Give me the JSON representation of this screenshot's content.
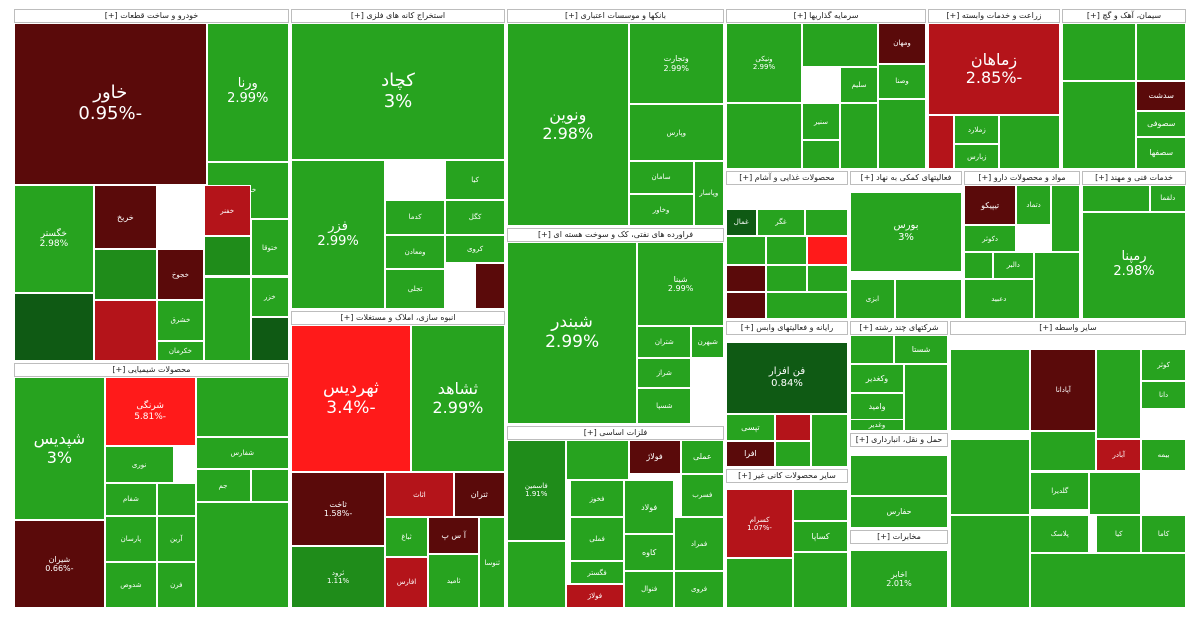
{
  "colors": {
    "up_strong": "#27a31f",
    "up_mid": "#1f8c1a",
    "up_dark": "#0f5a14",
    "down_dark": "#5a0a0a",
    "down_mid": "#b4141a",
    "down_bright": "#ff1a1a",
    "header_bg": "#ffffff"
  },
  "sectors": [
    {
      "id": "auto",
      "title": "خودرو و ساخت قطعات [+]",
      "tiles": [
        {
          "name": "خاور",
          "pct": "-0.95%"
        },
        {
          "name": "ورنا",
          "pct": "2.99%"
        },
        {
          "name": "خگستر",
          "pct": "2.98%"
        },
        {
          "name": "خریخ",
          "pct": ""
        },
        {
          "name": "خساپا",
          "pct": ""
        },
        {
          "name": "خجوخ",
          "pct": ""
        },
        {
          "name": "خفنر",
          "pct": ""
        },
        {
          "name": "ختوقا",
          "pct": ""
        },
        {
          "name": "خشرق",
          "pct": ""
        },
        {
          "name": "خکرمان",
          "pct": ""
        },
        {
          "name": "خزر",
          "pct": ""
        }
      ]
    },
    {
      "id": "metal_ore",
      "title": "استخراج کانه های فلزی [+]",
      "tiles": [
        {
          "name": "کچاد",
          "pct": "3%"
        },
        {
          "name": "فزر",
          "pct": "2.99%"
        },
        {
          "name": "کدما",
          "pct": ""
        },
        {
          "name": "کروی",
          "pct": ""
        },
        {
          "name": "کگل",
          "pct": ""
        },
        {
          "name": "ومعادن",
          "pct": ""
        },
        {
          "name": "تجلی",
          "pct": ""
        },
        {
          "name": "کیا",
          "pct": ""
        }
      ]
    },
    {
      "id": "banks",
      "title": "بانکها و موسسات اعتباری [+]",
      "tiles": [
        {
          "name": "ونوین",
          "pct": "2.98%"
        },
        {
          "name": "وتجارت",
          "pct": "2.99%"
        },
        {
          "name": "وپارس",
          "pct": ""
        },
        {
          "name": "سامان",
          "pct": ""
        },
        {
          "name": "وخاور",
          "pct": ""
        },
        {
          "name": "وپاسار",
          "pct": ""
        }
      ]
    },
    {
      "id": "investment",
      "title": "سرمایه گذاریها [+]",
      "tiles": [
        {
          "name": "ونیکی",
          "pct": "2.99%"
        },
        {
          "name": "ومهان",
          "pct": ""
        },
        {
          "name": "وصنا",
          "pct": ""
        },
        {
          "name": "سنیر",
          "pct": ""
        },
        {
          "name": "سلیم",
          "pct": ""
        }
      ]
    },
    {
      "id": "agri",
      "title": "زراعت و خدمات وابسته [+]",
      "tiles": [
        {
          "name": "زماهان",
          "pct": "-2.85%"
        },
        {
          "name": "زملارد",
          "pct": ""
        },
        {
          "name": "زبارس",
          "pct": ""
        }
      ]
    },
    {
      "id": "cement",
      "title": "سیمان، آهک و گچ [+]",
      "tiles": [
        {
          "name": "سدشت",
          "pct": ""
        },
        {
          "name": "سصوفی",
          "pct": ""
        },
        {
          "name": "سصفها",
          "pct": ""
        }
      ]
    },
    {
      "id": "refinery",
      "title": "فراورده های نفتی، کک و سوخت هسته ای [+]",
      "tiles": [
        {
          "name": "شبندر",
          "pct": "2.99%"
        },
        {
          "name": "شینا",
          "pct": "2.99%"
        },
        {
          "name": "شتران",
          "pct": ""
        },
        {
          "name": "شبهرن",
          "pct": ""
        },
        {
          "name": "شراز",
          "pct": ""
        },
        {
          "name": "شسپا",
          "pct": ""
        }
      ]
    },
    {
      "id": "food",
      "title": "محصولات غذایی و آشام [+]",
      "tiles": [
        {
          "name": "غگر",
          "pct": ""
        },
        {
          "name": "غمال",
          "pct": ""
        }
      ]
    },
    {
      "id": "it",
      "title": "رایانه و فعالیتهای وابس [+]",
      "tiles": [
        {
          "name": "فن افزار",
          "pct": "0.84%"
        },
        {
          "name": "تپسی",
          "pct": ""
        },
        {
          "name": "افرا",
          "pct": ""
        }
      ]
    },
    {
      "id": "nonmetal",
      "title": "سایر محصولات کانی غیر [+]",
      "tiles": [
        {
          "name": "کسرام",
          "pct": "-1.07%"
        },
        {
          "name": "کساپا",
          "pct": ""
        }
      ]
    },
    {
      "id": "financial_aux",
      "title": "فعالیتهای کمکی به نهاد [+]",
      "tiles": [
        {
          "name": "بورس",
          "pct": "3%"
        },
        {
          "name": "ابزی",
          "pct": ""
        }
      ]
    },
    {
      "id": "pharma",
      "title": "مواد و محصولات دارو [+]",
      "tiles": [
        {
          "name": "تیپیکو",
          "pct": ""
        },
        {
          "name": "دتماد",
          "pct": ""
        },
        {
          "name": "دکوثر",
          "pct": ""
        },
        {
          "name": "دالبر",
          "pct": ""
        },
        {
          "name": "دعبید",
          "pct": ""
        }
      ]
    },
    {
      "id": "engineering",
      "title": "خدمات فنی و مهند [+]",
      "tiles": [
        {
          "name": "رمپنا",
          "pct": "2.98%"
        },
        {
          "name": "دلقما",
          "pct": ""
        }
      ]
    },
    {
      "id": "multi",
      "title": "شرکتهای چند رشته [+]",
      "tiles": [
        {
          "name": "شستا",
          "pct": ""
        },
        {
          "name": "وکغدیر",
          "pct": ""
        },
        {
          "name": "وامید",
          "pct": ""
        },
        {
          "name": "وغدیر",
          "pct": ""
        }
      ]
    },
    {
      "id": "chemical",
      "title": "محصولات شیمیایی [+]",
      "tiles": [
        {
          "name": "شپدیس",
          "pct": "3%"
        },
        {
          "name": "شرنگی",
          "pct": "-5.81%"
        },
        {
          "name": "شیران",
          "pct": "-0.66%"
        },
        {
          "name": "شفارس",
          "pct": ""
        },
        {
          "name": "نوری",
          "pct": ""
        },
        {
          "name": "شفام",
          "pct": ""
        },
        {
          "name": "پارسان",
          "pct": ""
        },
        {
          "name": "شدوص",
          "pct": ""
        },
        {
          "name": "فرن",
          "pct": ""
        },
        {
          "name": "جم",
          "pct": ""
        },
        {
          "name": "آرین",
          "pct": ""
        }
      ]
    },
    {
      "id": "real_estate",
      "title": "انبوه سازی، املاک و مستغلات [+]",
      "tiles": [
        {
          "name": "ثهردیس",
          "pct": "-3.4%"
        },
        {
          "name": "ثشاهد",
          "pct": "2.99%"
        },
        {
          "name": "ثاخت",
          "pct": "-1.58%"
        },
        {
          "name": "ثتران",
          "pct": ""
        },
        {
          "name": "آ س پ",
          "pct": ""
        },
        {
          "name": "ثامید",
          "pct": ""
        },
        {
          "name": "اثاث",
          "pct": ""
        },
        {
          "name": "ثنوسا",
          "pct": ""
        },
        {
          "name": "ثباغ",
          "pct": ""
        },
        {
          "name": "افارس",
          "pct": ""
        },
        {
          "name": "ثرود",
          "pct": "1.11%"
        }
      ]
    },
    {
      "id": "basic_metals",
      "title": "فلزات اساسی [+]",
      "tiles": [
        {
          "name": "فاسمین",
          "pct": "1.91%"
        },
        {
          "name": "فولاژ",
          "pct": ""
        },
        {
          "name": "عملی",
          "pct": ""
        },
        {
          "name": "فخوز",
          "pct": ""
        },
        {
          "name": "فملی",
          "pct": ""
        },
        {
          "name": "فولاد",
          "pct": ""
        },
        {
          "name": "کاوه",
          "pct": ""
        },
        {
          "name": "فسرب",
          "pct": ""
        },
        {
          "name": "فگستر",
          "pct": ""
        },
        {
          "name": "فنوال",
          "pct": ""
        },
        {
          "name": "فولاژ",
          "pct": ""
        },
        {
          "name": "فروی",
          "pct": ""
        },
        {
          "name": "فمراد",
          "pct": ""
        }
      ]
    },
    {
      "id": "transport",
      "title": "حمل و نقل، انبارداری [+]",
      "tiles": [
        {
          "name": "حفارس",
          "pct": ""
        }
      ]
    },
    {
      "id": "telecom",
      "title": "مخابرات [+]",
      "tiles": [
        {
          "name": "اخابر",
          "pct": "2.01%"
        }
      ]
    },
    {
      "id": "misc",
      "title": "سایر واسطه [+]",
      "tiles": [
        {
          "name": "کوثر",
          "pct": ""
        },
        {
          "name": "دانا",
          "pct": ""
        },
        {
          "name": "بیمه",
          "pct": ""
        },
        {
          "name": "آپادانا",
          "pct": ""
        },
        {
          "name": "آبادر",
          "pct": ""
        },
        {
          "name": "گلدیرا",
          "pct": ""
        },
        {
          "name": "پلاسک",
          "pct": ""
        },
        {
          "name": "کیا",
          "pct": ""
        },
        {
          "name": "کاما",
          "pct": ""
        }
      ]
    }
  ]
}
